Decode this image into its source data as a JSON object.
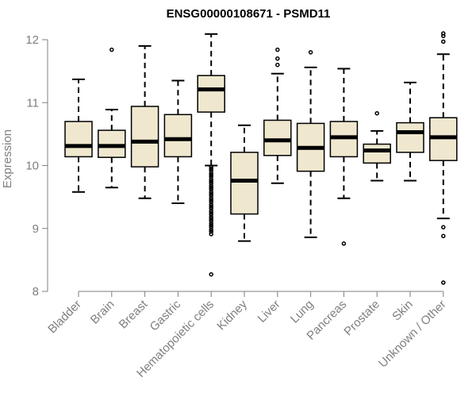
{
  "chart_data": {
    "type": "box",
    "title": "ENSG00000108671 - PSMD11",
    "xlabel": "",
    "ylabel": "Expression",
    "ylim": [
      8,
      12
    ],
    "yticks": [
      8,
      9,
      10,
      11,
      12
    ],
    "grid": false,
    "box_fill": "#efe8cf",
    "stroke_color": "#000000",
    "axis_color": "#7f7f7f",
    "categories": [
      "Bladder",
      "Brain",
      "Breast",
      "Gastric",
      "Hematopoietic cells",
      "Kidney",
      "Liver",
      "Lung",
      "Pancreas",
      "Prostate",
      "Skin",
      "Unknown / Other"
    ],
    "boxes": [
      {
        "category": "Bladder",
        "whisker_low": 9.58,
        "q1": 10.14,
        "median": 10.31,
        "q3": 10.7,
        "whisker_high": 11.37,
        "outliers": []
      },
      {
        "category": "Brain",
        "whisker_low": 9.65,
        "q1": 10.13,
        "median": 10.31,
        "q3": 10.56,
        "whisker_high": 10.89,
        "outliers": [
          11.84
        ]
      },
      {
        "category": "Breast",
        "whisker_low": 9.48,
        "q1": 9.98,
        "median": 10.38,
        "q3": 10.94,
        "whisker_high": 11.9,
        "outliers": []
      },
      {
        "category": "Gastric",
        "whisker_low": 9.4,
        "q1": 10.14,
        "median": 10.42,
        "q3": 10.81,
        "whisker_high": 11.35,
        "outliers": []
      },
      {
        "category": "Hematopoietic cells",
        "whisker_low": 10.0,
        "q1": 10.85,
        "median": 11.21,
        "q3": 11.43,
        "whisker_high": 12.09,
        "outliers": [
          9.98,
          9.95,
          9.92,
          9.88,
          9.85,
          9.82,
          9.78,
          9.75,
          9.72,
          9.68,
          9.65,
          9.62,
          9.58,
          9.55,
          9.52,
          9.48,
          9.45,
          9.42,
          9.38,
          9.35,
          9.32,
          9.28,
          9.25,
          9.22,
          9.18,
          9.15,
          9.12,
          9.08,
          9.05,
          9.02,
          8.98,
          8.95,
          8.91,
          8.27
        ]
      },
      {
        "category": "Kidney",
        "whisker_low": 8.8,
        "q1": 9.23,
        "median": 9.76,
        "q3": 10.21,
        "whisker_high": 10.64,
        "outliers": []
      },
      {
        "category": "Liver",
        "whisker_low": 9.72,
        "q1": 10.16,
        "median": 10.4,
        "q3": 10.72,
        "whisker_high": 11.46,
        "outliers": [
          11.6,
          11.7,
          11.84
        ]
      },
      {
        "category": "Lung",
        "whisker_low": 8.86,
        "q1": 9.91,
        "median": 10.28,
        "q3": 10.67,
        "whisker_high": 11.56,
        "outliers": [
          11.8
        ]
      },
      {
        "category": "Pancreas",
        "whisker_low": 9.48,
        "q1": 10.14,
        "median": 10.45,
        "q3": 10.7,
        "whisker_high": 11.54,
        "outliers": [
          8.76
        ]
      },
      {
        "category": "Prostate",
        "whisker_low": 9.76,
        "q1": 10.04,
        "median": 10.24,
        "q3": 10.34,
        "whisker_high": 10.55,
        "outliers": [
          10.83
        ]
      },
      {
        "category": "Skin",
        "whisker_low": 9.76,
        "q1": 10.21,
        "median": 10.53,
        "q3": 10.68,
        "whisker_high": 11.32,
        "outliers": []
      },
      {
        "category": "Unknown / Other",
        "whisker_low": 9.16,
        "q1": 10.08,
        "median": 10.45,
        "q3": 10.76,
        "whisker_high": 11.77,
        "outliers": [
          11.97,
          12.06,
          12.1,
          9.02,
          8.88,
          8.14
        ]
      }
    ]
  }
}
